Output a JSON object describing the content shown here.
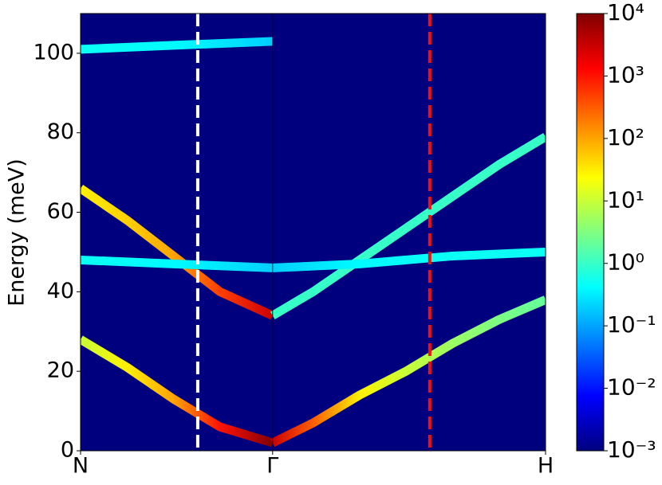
{
  "chart_data": {
    "type": "heatmap",
    "ylabel": "Energy (meV)",
    "xlim": [
      0,
      1
    ],
    "xticks": [
      {
        "value": 0,
        "label": "N"
      },
      {
        "value": 0.413,
        "label": "Γ"
      },
      {
        "value": 1,
        "label": "H"
      }
    ],
    "ylim": [
      0,
      110
    ],
    "yticks": [
      0,
      20,
      40,
      60,
      80,
      100
    ],
    "background": "#00007f",
    "colormap": "jet",
    "clim": [
      0.001,
      10000
    ],
    "log_scale": true,
    "cticks": [
      {
        "value": 0.001,
        "label": "10⁻³"
      },
      {
        "value": 0.01,
        "label": "10⁻²"
      },
      {
        "value": 0.1,
        "label": "10⁻¹"
      },
      {
        "value": 1,
        "label": "10⁰"
      },
      {
        "value": 10,
        "label": "10¹"
      },
      {
        "value": 100,
        "label": "10²"
      },
      {
        "value": 1000,
        "label": "10³"
      },
      {
        "value": 10000,
        "label": "10⁴"
      }
    ],
    "vlines": [
      {
        "x": 0.252,
        "color": "#ffffff"
      },
      {
        "x": 0.751,
        "color": "#ee1111"
      }
    ],
    "series": [
      {
        "x": [
          0,
          0.1,
          0.2,
          0.3,
          0.413
        ],
        "values": [
          28,
          21,
          13,
          6,
          2
        ],
        "intensity": [
          10,
          30,
          100,
          1000,
          10000
        ]
      },
      {
        "x": [
          0.413,
          0.5,
          0.6,
          0.7,
          0.8,
          0.9,
          1
        ],
        "values": [
          2,
          7,
          14,
          20,
          27,
          33,
          38
        ],
        "intensity": [
          3000,
          300,
          30,
          10,
          5,
          3,
          2
        ]
      },
      {
        "x": [
          0,
          0.1,
          0.2,
          0.3,
          0.413
        ],
        "values": [
          66,
          58,
          49,
          40,
          34
        ],
        "intensity": [
          30,
          50,
          100,
          500,
          3000
        ]
      },
      {
        "x": [
          0.413,
          0.5,
          0.6,
          0.7,
          0.8,
          0.9,
          1
        ],
        "values": [
          34,
          40,
          48,
          56,
          64,
          72,
          79
        ],
        "intensity": [
          1,
          1,
          1,
          1,
          1,
          1,
          1
        ]
      },
      {
        "x": [
          0,
          0.2,
          0.413
        ],
        "values": [
          48,
          47,
          46
        ],
        "intensity": [
          0.5,
          0.4,
          0.2
        ]
      },
      {
        "x": [
          0.413,
          0.6,
          0.8,
          1
        ],
        "values": [
          46,
          47,
          49,
          50
        ],
        "intensity": [
          0.2,
          0.4,
          0.5,
          0.5
        ]
      },
      {
        "x": [
          0,
          0.2,
          0.413
        ],
        "values": [
          101,
          102,
          103
        ],
        "intensity": [
          0.5,
          0.4,
          0.2
        ]
      }
    ]
  }
}
